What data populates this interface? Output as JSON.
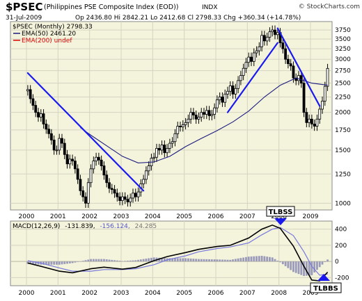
{
  "header": {
    "symbol": "$PSEC",
    "index_name": "(Philippines PSE Composite Index (EOD))",
    "exchange": "INDX",
    "date": "31-Jul-2009",
    "ohlc": "Op 2436.80  Hi 2842.21  Lo 2412.68  Cl 2798.33  Chg +360.34 (+14.78%)",
    "watermark": "© StockCharts.com"
  },
  "legend": {
    "line1": "$PSEC (Monthly) 2798.33",
    "line2": "EMA(50) 2461.20",
    "line3": "EMA(200) undef"
  },
  "macd_label": {
    "name": "MACD(12,26,9)",
    "macd": "-131.839,",
    "signal": "-156.124,",
    "hist": "24.285"
  },
  "annotations": {
    "top": "TLBSS",
    "bottom": "TLBBS"
  },
  "colors": {
    "panel_bg": "#f4f4dc",
    "grid": "#d4d4c2",
    "trendline": "#1a1aee",
    "ema50": "#1c1c80",
    "ema200": "#dd0000",
    "macd_line": "#000000",
    "signal_line": "#7777dd",
    "histogram": "#9a9aba"
  },
  "chart_data": [
    {
      "type": "candlestick",
      "title": "$PSEC (Philippines PSE Composite Index (EOD))",
      "scale": "log",
      "ylim": [
        950,
        4000
      ],
      "y_ticks": [
        1000,
        1250,
        1500,
        1750,
        2000,
        2250,
        2500,
        2750,
        3000,
        3250,
        3500,
        3750
      ],
      "x_ticks": [
        "2000",
        "2001",
        "2002",
        "2003",
        "2004",
        "2005",
        "2006",
        "2007",
        "2008",
        "2009"
      ],
      "monthly_close": [
        {
          "date": "2000-01",
          "close": 2380
        },
        {
          "date": "2000-02",
          "close": 2220
        },
        {
          "date": "2000-03",
          "close": 2110
        },
        {
          "date": "2000-04",
          "close": 2000
        },
        {
          "date": "2000-05",
          "close": 1930
        },
        {
          "date": "2000-06",
          "close": 1980
        },
        {
          "date": "2000-07",
          "close": 1830
        },
        {
          "date": "2000-08",
          "close": 1760
        },
        {
          "date": "2000-09",
          "close": 1700
        },
        {
          "date": "2000-10",
          "close": 1620
        },
        {
          "date": "2000-11",
          "close": 1500
        },
        {
          "date": "2000-12",
          "close": 1500
        },
        {
          "date": "2001-01",
          "close": 1640
        },
        {
          "date": "2001-02",
          "close": 1580
        },
        {
          "date": "2001-03",
          "close": 1450
        },
        {
          "date": "2001-04",
          "close": 1350
        },
        {
          "date": "2001-05",
          "close": 1400
        },
        {
          "date": "2001-06",
          "close": 1380
        },
        {
          "date": "2001-07",
          "close": 1300
        },
        {
          "date": "2001-08",
          "close": 1200
        },
        {
          "date": "2001-09",
          "close": 1100
        },
        {
          "date": "2001-10",
          "close": 1050
        },
        {
          "date": "2001-11",
          "close": 1000
        },
        {
          "date": "2001-12",
          "close": 1170
        },
        {
          "date": "2002-01",
          "close": 1300
        },
        {
          "date": "2002-02",
          "close": 1380
        },
        {
          "date": "2002-03",
          "close": 1420
        },
        {
          "date": "2002-04",
          "close": 1390
        },
        {
          "date": "2002-05",
          "close": 1330
        },
        {
          "date": "2002-06",
          "close": 1240
        },
        {
          "date": "2002-07",
          "close": 1170
        },
        {
          "date": "2002-08",
          "close": 1120
        },
        {
          "date": "2002-09",
          "close": 1110
        },
        {
          "date": "2002-10",
          "close": 1080
        },
        {
          "date": "2002-11",
          "close": 1050
        },
        {
          "date": "2002-12",
          "close": 1020
        },
        {
          "date": "2003-01",
          "close": 1050
        },
        {
          "date": "2003-02",
          "close": 1030
        },
        {
          "date": "2003-03",
          "close": 1010
        },
        {
          "date": "2003-04",
          "close": 1040
        },
        {
          "date": "2003-05",
          "close": 1080
        },
        {
          "date": "2003-06",
          "close": 1050
        },
        {
          "date": "2003-07",
          "close": 1090
        },
        {
          "date": "2003-08",
          "close": 1160
        },
        {
          "date": "2003-09",
          "close": 1200
        },
        {
          "date": "2003-10",
          "close": 1280
        },
        {
          "date": "2003-11",
          "close": 1330
        },
        {
          "date": "2003-12",
          "close": 1410
        },
        {
          "date": "2004-01",
          "close": 1420
        },
        {
          "date": "2004-02",
          "close": 1520
        },
        {
          "date": "2004-03",
          "close": 1500
        },
        {
          "date": "2004-04",
          "close": 1560
        },
        {
          "date": "2004-05",
          "close": 1470
        },
        {
          "date": "2004-06",
          "close": 1520
        },
        {
          "date": "2004-07",
          "close": 1580
        },
        {
          "date": "2004-08",
          "close": 1600
        },
        {
          "date": "2004-09",
          "close": 1700
        },
        {
          "date": "2004-10",
          "close": 1800
        },
        {
          "date": "2004-11",
          "close": 1790
        },
        {
          "date": "2004-12",
          "close": 1820
        },
        {
          "date": "2005-01",
          "close": 1850
        },
        {
          "date": "2005-02",
          "close": 1900
        },
        {
          "date": "2005-03",
          "close": 2000
        },
        {
          "date": "2005-04",
          "close": 1960
        },
        {
          "date": "2005-05",
          "close": 1900
        },
        {
          "date": "2005-06",
          "close": 1930
        },
        {
          "date": "2005-07",
          "close": 2000
        },
        {
          "date": "2005-08",
          "close": 1970
        },
        {
          "date": "2005-09",
          "close": 2030
        },
        {
          "date": "2005-10",
          "close": 1950
        },
        {
          "date": "2005-11",
          "close": 1970
        },
        {
          "date": "2005-12",
          "close": 2070
        },
        {
          "date": "2006-01",
          "close": 2200
        },
        {
          "date": "2006-02",
          "close": 2250
        },
        {
          "date": "2006-03",
          "close": 2160
        },
        {
          "date": "2006-04",
          "close": 2300
        },
        {
          "date": "2006-05",
          "close": 2350
        },
        {
          "date": "2006-06",
          "close": 2450
        },
        {
          "date": "2006-07",
          "close": 2300
        },
        {
          "date": "2006-08",
          "close": 2400
        },
        {
          "date": "2006-09",
          "close": 2550
        },
        {
          "date": "2006-10",
          "close": 2650
        },
        {
          "date": "2006-11",
          "close": 2800
        },
        {
          "date": "2006-12",
          "close": 2930
        },
        {
          "date": "2007-01",
          "close": 3050
        },
        {
          "date": "2007-02",
          "close": 2950
        },
        {
          "date": "2007-03",
          "close": 3150
        },
        {
          "date": "2007-04",
          "close": 3200
        },
        {
          "date": "2007-05",
          "close": 3300
        },
        {
          "date": "2007-06",
          "close": 3600
        },
        {
          "date": "2007-07",
          "close": 3450
        },
        {
          "date": "2007-08",
          "close": 3550
        },
        {
          "date": "2007-09",
          "close": 3700
        },
        {
          "date": "2007-10",
          "close": 3750
        },
        {
          "date": "2007-11",
          "close": 3620
        },
        {
          "date": "2007-12",
          "close": 3680
        },
        {
          "date": "2008-01",
          "close": 3400
        },
        {
          "date": "2008-02",
          "close": 3250
        },
        {
          "date": "2008-03",
          "close": 3000
        },
        {
          "date": "2008-04",
          "close": 2900
        },
        {
          "date": "2008-05",
          "close": 2850
        },
        {
          "date": "2008-06",
          "close": 2600
        },
        {
          "date": "2008-07",
          "close": 2550
        },
        {
          "date": "2008-08",
          "close": 2650
        },
        {
          "date": "2008-09",
          "close": 2500
        },
        {
          "date": "2008-10",
          "close": 2000
        },
        {
          "date": "2008-11",
          "close": 1850
        },
        {
          "date": "2008-12",
          "close": 1900
        },
        {
          "date": "2009-01",
          "close": 1830
        },
        {
          "date": "2009-02",
          "close": 1800
        },
        {
          "date": "2009-03",
          "close": 1900
        },
        {
          "date": "2009-04",
          "close": 2050
        },
        {
          "date": "2009-05",
          "close": 2180
        },
        {
          "date": "2009-06",
          "close": 2440
        },
        {
          "date": "2009-07",
          "close": 2798
        }
      ],
      "ema50_series": [
        {
          "date": "2001-09",
          "value": 1780
        },
        {
          "date": "2002-01",
          "value": 1680
        },
        {
          "date": "2002-07",
          "value": 1550
        },
        {
          "date": "2003-01",
          "value": 1430
        },
        {
          "date": "2003-07",
          "value": 1360
        },
        {
          "date": "2004-01",
          "value": 1370
        },
        {
          "date": "2004-07",
          "value": 1430
        },
        {
          "date": "2005-01",
          "value": 1540
        },
        {
          "date": "2005-07",
          "value": 1640
        },
        {
          "date": "2006-01",
          "value": 1740
        },
        {
          "date": "2006-07",
          "value": 1860
        },
        {
          "date": "2007-01",
          "value": 2020
        },
        {
          "date": "2007-07",
          "value": 2250
        },
        {
          "date": "2008-01",
          "value": 2460
        },
        {
          "date": "2008-07",
          "value": 2600
        },
        {
          "date": "2009-01",
          "value": 2500
        },
        {
          "date": "2009-07",
          "value": 2461
        }
      ],
      "trendlines": [
        {
          "from": [
            "2000-01",
            2700
          ],
          "to": [
            "2003-09",
            1100
          ]
        },
        {
          "from": [
            "2006-05",
            2000
          ],
          "to": [
            "2007-12",
            3400
          ]
        },
        {
          "from": [
            "2007-12",
            3800
          ],
          "to": [
            "2009-04",
            2100
          ]
        }
      ]
    },
    {
      "type": "macd",
      "title": "MACD(12,26,9)",
      "ylim": [
        -300,
        500
      ],
      "y_ticks": [
        -200,
        0,
        200,
        400
      ],
      "x_ticks": [
        "2000",
        "2001",
        "2002",
        "2003",
        "2004",
        "2005",
        "2006",
        "2007",
        "2008",
        "2009"
      ],
      "macd": {
        "value": -131.839
      },
      "signal": {
        "value": -156.124
      },
      "histogram": {
        "value": 24.285
      },
      "macd_series": [
        {
          "date": "2000-01",
          "value": -20
        },
        {
          "date": "2000-06",
          "value": -60
        },
        {
          "date": "2001-01",
          "value": -120
        },
        {
          "date": "2001-06",
          "value": -140
        },
        {
          "date": "2002-01",
          "value": -90
        },
        {
          "date": "2002-06",
          "value": -70
        },
        {
          "date": "2003-01",
          "value": -95
        },
        {
          "date": "2003-06",
          "value": -75
        },
        {
          "date": "2004-01",
          "value": 10
        },
        {
          "date": "2004-06",
          "value": 60
        },
        {
          "date": "2005-01",
          "value": 110
        },
        {
          "date": "2005-06",
          "value": 150
        },
        {
          "date": "2006-01",
          "value": 185
        },
        {
          "date": "2006-06",
          "value": 200
        },
        {
          "date": "2007-01",
          "value": 290
        },
        {
          "date": "2007-06",
          "value": 400
        },
        {
          "date": "2007-10",
          "value": 450
        },
        {
          "date": "2008-01",
          "value": 410
        },
        {
          "date": "2008-06",
          "value": 190
        },
        {
          "date": "2008-10",
          "value": -60
        },
        {
          "date": "2009-01",
          "value": -230
        },
        {
          "date": "2009-04",
          "value": -240
        },
        {
          "date": "2009-07",
          "value": -132
        }
      ],
      "signal_series": [
        {
          "date": "2000-01",
          "value": 10
        },
        {
          "date": "2000-06",
          "value": -20
        },
        {
          "date": "2001-01",
          "value": -80
        },
        {
          "date": "2001-06",
          "value": -120
        },
        {
          "date": "2002-01",
          "value": -120
        },
        {
          "date": "2002-06",
          "value": -100
        },
        {
          "date": "2003-01",
          "value": -100
        },
        {
          "date": "2003-06",
          "value": -90
        },
        {
          "date": "2004-01",
          "value": -40
        },
        {
          "date": "2004-06",
          "value": 20
        },
        {
          "date": "2005-01",
          "value": 70
        },
        {
          "date": "2005-06",
          "value": 120
        },
        {
          "date": "2006-01",
          "value": 160
        },
        {
          "date": "2006-06",
          "value": 180
        },
        {
          "date": "2007-01",
          "value": 230
        },
        {
          "date": "2007-06",
          "value": 330
        },
        {
          "date": "2007-10",
          "value": 400
        },
        {
          "date": "2008-01",
          "value": 420
        },
        {
          "date": "2008-06",
          "value": 320
        },
        {
          "date": "2008-10",
          "value": 120
        },
        {
          "date": "2009-01",
          "value": -60
        },
        {
          "date": "2009-04",
          "value": -170
        },
        {
          "date": "2009-07",
          "value": -156
        }
      ],
      "histogram_series": [
        {
          "date": "2000-01",
          "value": -30
        },
        {
          "date": "2000-06",
          "value": -40
        },
        {
          "date": "2001-01",
          "value": -40
        },
        {
          "date": "2001-06",
          "value": -20
        },
        {
          "date": "2002-01",
          "value": 30
        },
        {
          "date": "2002-06",
          "value": 30
        },
        {
          "date": "2003-01",
          "value": 5
        },
        {
          "date": "2003-06",
          "value": 15
        },
        {
          "date": "2004-01",
          "value": 50
        },
        {
          "date": "2004-06",
          "value": 40
        },
        {
          "date": "2005-01",
          "value": 40
        },
        {
          "date": "2005-06",
          "value": 30
        },
        {
          "date": "2006-01",
          "value": 25
        },
        {
          "date": "2006-06",
          "value": 20
        },
        {
          "date": "2007-01",
          "value": 60
        },
        {
          "date": "2007-06",
          "value": 70
        },
        {
          "date": "2007-10",
          "value": 50
        },
        {
          "date": "2008-01",
          "value": -10
        },
        {
          "date": "2008-06",
          "value": -130
        },
        {
          "date": "2008-10",
          "value": -180
        },
        {
          "date": "2009-01",
          "value": -170
        },
        {
          "date": "2009-04",
          "value": -70
        },
        {
          "date": "2009-07",
          "value": 24
        }
      ]
    }
  ]
}
